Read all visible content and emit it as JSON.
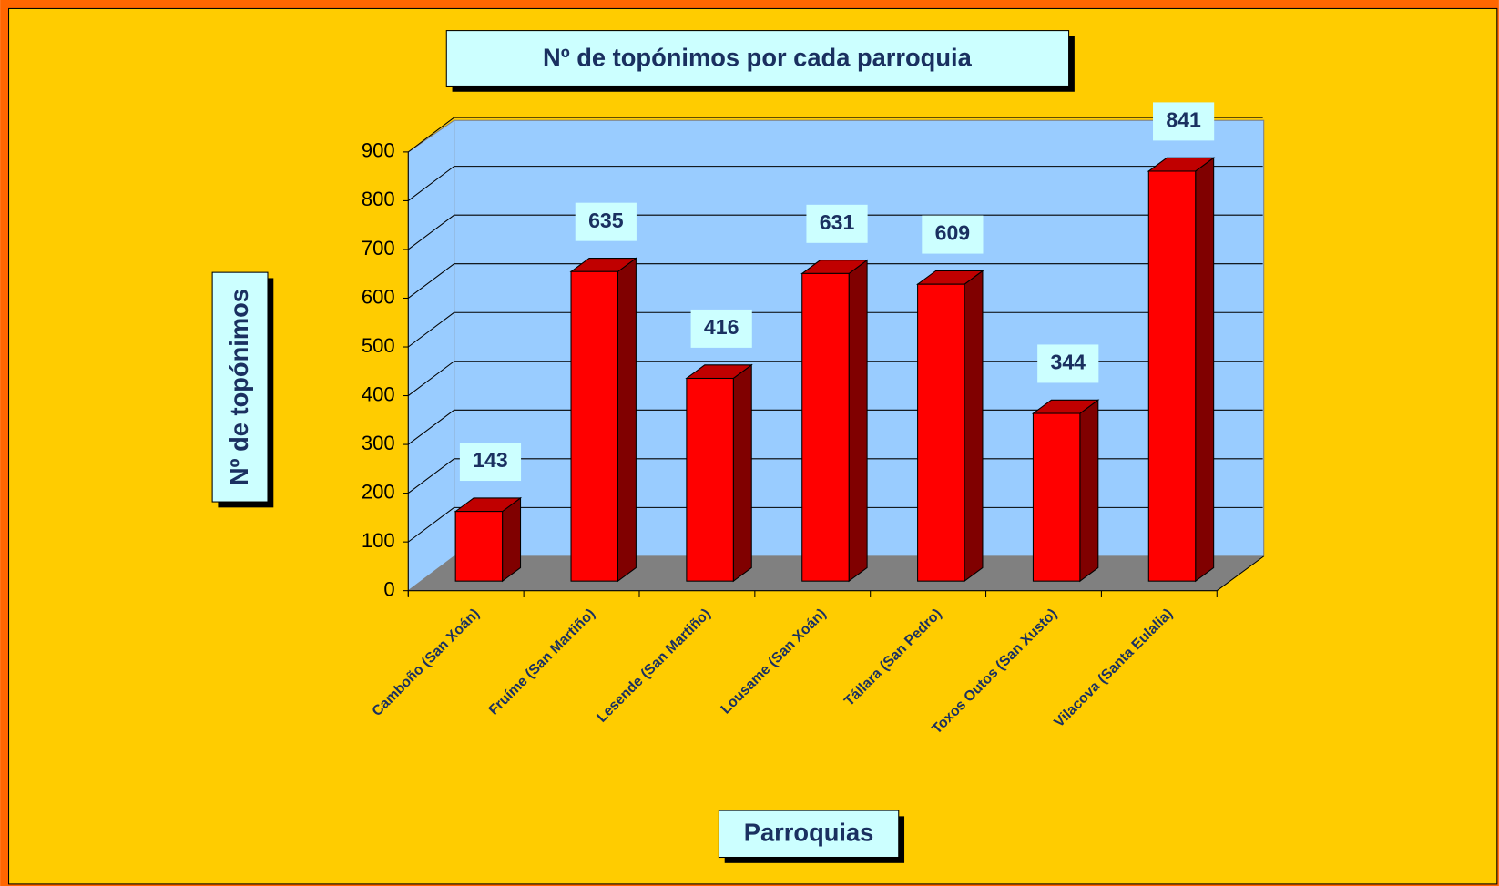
{
  "chart_data": {
    "type": "bar3d",
    "title": "Nº de topónimos por cada parroquia",
    "xlabel": "Parroquias",
    "ylabel": "Nº de topónimos",
    "categories": [
      "Camboño (San Xoán)",
      "Fruíme (San Martiño)",
      "Lesende (San Martiño)",
      "Lousame (San Xoán)",
      "Tállara (San Pedro)",
      "Toxos Outos (San Xusto)",
      "Vilacova (Santa Eulalia)"
    ],
    "values": [
      143,
      635,
      416,
      631,
      609,
      344,
      841
    ],
    "color": "#ff0000",
    "ylim": [
      0,
      900
    ],
    "yticks": [
      0,
      100,
      200,
      300,
      400,
      500,
      600,
      700,
      800,
      900
    ],
    "grid": true
  }
}
